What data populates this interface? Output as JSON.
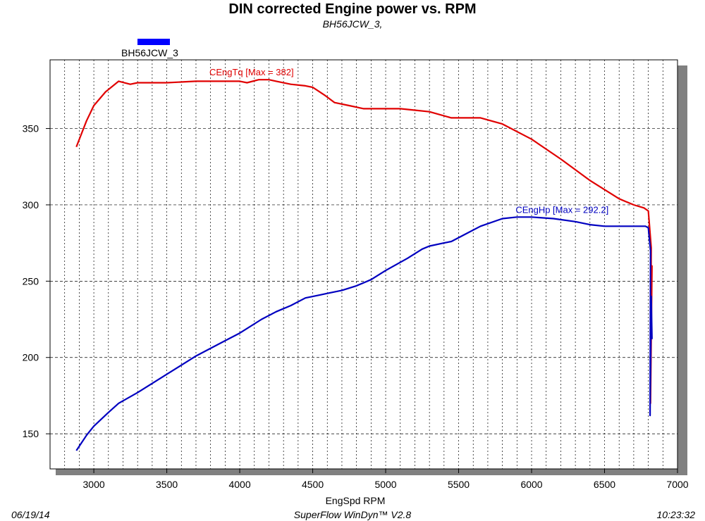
{
  "chart_data": {
    "type": "line",
    "title": "DIN corrected Engine power vs. RPM",
    "subtitle": "BH56JCW_3,",
    "legend": [
      {
        "label": "BH56JCW_3",
        "color": "#0000ff"
      }
    ],
    "xlabel": "EngSpd  RPM",
    "ylabel": "",
    "xlim": [
      2700,
      7000
    ],
    "ylim": [
      127,
      395
    ],
    "xticks": [
      3000,
      3500,
      4000,
      4500,
      5000,
      5500,
      6000,
      6500,
      7000
    ],
    "yticks": [
      150,
      200,
      250,
      300,
      350
    ],
    "grid": true,
    "series": [
      {
        "name": "CEngTq",
        "annotation": "CEngTq [Max = 382]",
        "color": "#e00000",
        "x": [
          2880,
          2950,
          3000,
          3080,
          3170,
          3250,
          3300,
          3500,
          3700,
          3900,
          4000,
          4050,
          4130,
          4200,
          4250,
          4350,
          4450,
          4500,
          4580,
          4650,
          4750,
          4850,
          5000,
          5100,
          5200,
          5300,
          5450,
          5550,
          5650,
          5800,
          6000,
          6200,
          6400,
          6500,
          6600,
          6700,
          6770,
          6800,
          6820,
          6815,
          6815,
          6825,
          6820
        ],
        "y": [
          338,
          355,
          365,
          374,
          381,
          379,
          380,
          380,
          381,
          381,
          381,
          380,
          382,
          382,
          381,
          379,
          378,
          377,
          372,
          367,
          365,
          363,
          363,
          363,
          362,
          361,
          357,
          357,
          357,
          353,
          343,
          330,
          316,
          310,
          304,
          300,
          298,
          296,
          272,
          175,
          170,
          260,
          242
        ]
      },
      {
        "name": "CEngHp",
        "annotation": "CEngHp [Max = 292.2]",
        "color": "#0000c0",
        "x": [
          2880,
          2950,
          3000,
          3100,
          3170,
          3300,
          3500,
          3700,
          3900,
          4000,
          4150,
          4250,
          4350,
          4450,
          4550,
          4600,
          4700,
          4800,
          4900,
          5000,
          5150,
          5250,
          5300,
          5400,
          5450,
          5550,
          5650,
          5800,
          5900,
          6000,
          6150,
          6300,
          6400,
          6500,
          6600,
          6700,
          6780,
          6800,
          6815,
          6812,
          6812,
          6820,
          6825
        ],
        "y": [
          139,
          149,
          155,
          164,
          170,
          177,
          189,
          201,
          211,
          216,
          225,
          230,
          234,
          239,
          241,
          242,
          244,
          247,
          251,
          257,
          265,
          271,
          273,
          275,
          276,
          281,
          286,
          291,
          292,
          292,
          291,
          289,
          287,
          286,
          286,
          286,
          286,
          285,
          270,
          162,
          165,
          240,
          212
        ]
      }
    ]
  },
  "footer": {
    "date": "06/19/14",
    "software": "SuperFlow WinDyn™ V2.8",
    "time": "10:23:32"
  }
}
